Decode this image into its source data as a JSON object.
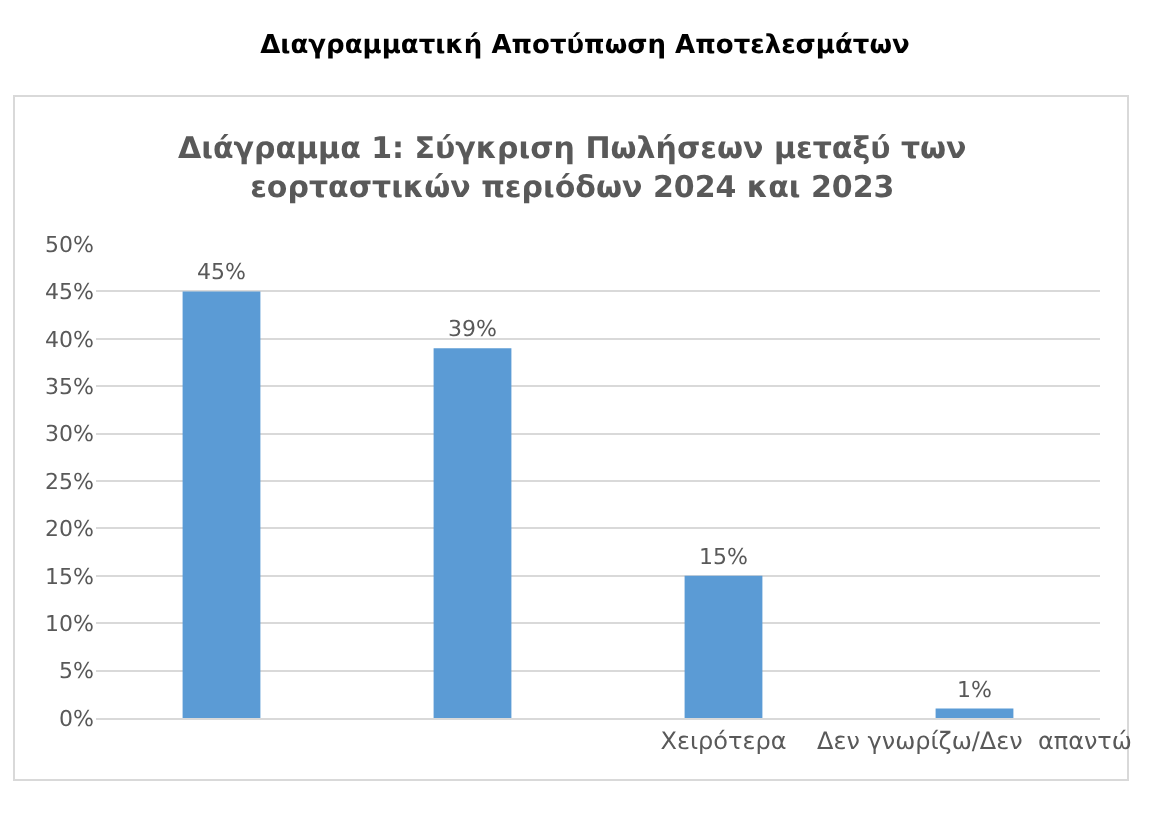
{
  "chart_data": {
    "type": "bar",
    "title": "Διαγραμματική Αποτύπωση Αποτελεσμάτων",
    "subtitle": "Διάγραμμα 1: Σύγκριση Πωλήσεων μεταξύ των εορταστικών περιόδων 2024 και 2023",
    "categories": [
      null,
      null,
      "Χειρότερα",
      "Δεν γνωρίζω/Δεν  απαντώ"
    ],
    "values": [
      45,
      39,
      15,
      1
    ],
    "value_labels": [
      "45%",
      "39%",
      "15%",
      "1%"
    ],
    "color": "#5b9bd5",
    "ylim": [
      0,
      50
    ],
    "yticks": [
      {
        "value": 0,
        "label": "0%"
      },
      {
        "value": 5,
        "label": "5%"
      },
      {
        "value": 10,
        "label": "10%"
      },
      {
        "value": 15,
        "label": "15%"
      },
      {
        "value": 20,
        "label": "20%"
      },
      {
        "value": 25,
        "label": "25%"
      },
      {
        "value": 30,
        "label": "30%"
      },
      {
        "value": 35,
        "label": "35%"
      },
      {
        "value": 40,
        "label": "40%"
      },
      {
        "value": 45,
        "label": "45%"
      },
      {
        "value": 50,
        "label": "50%"
      }
    ],
    "grid": "y"
  }
}
